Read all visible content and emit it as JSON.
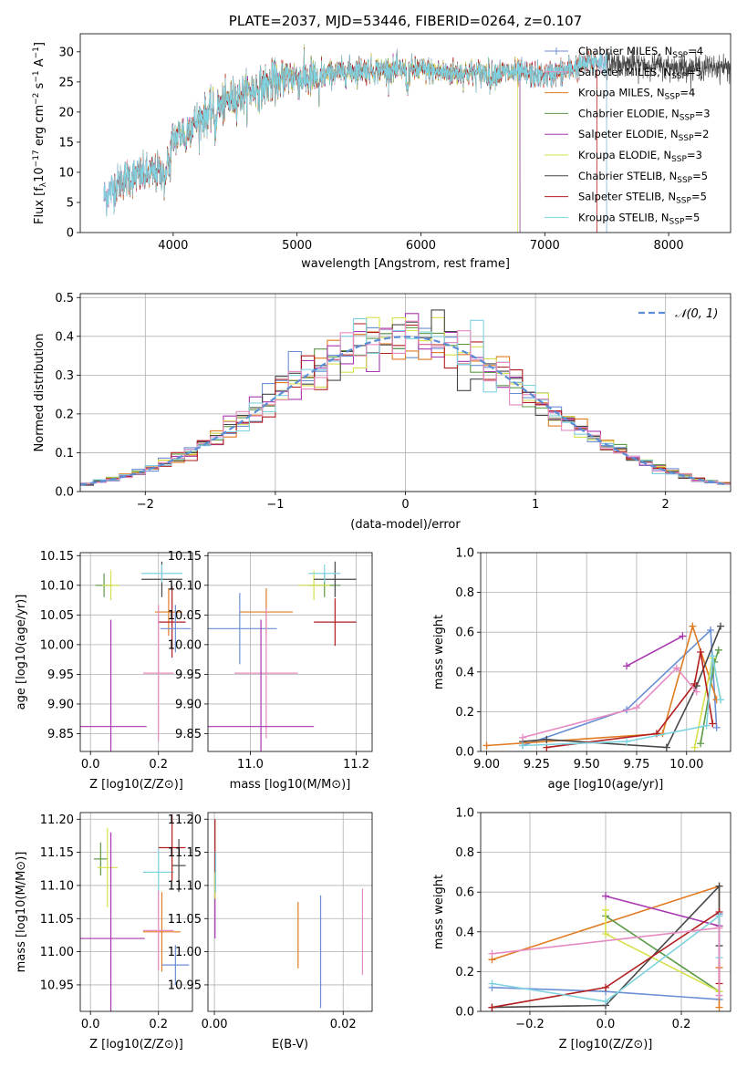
{
  "colors": {
    "c0": "#6a8fd4",
    "c1": "#e07b21",
    "c2": "#5d9a47",
    "c3": "#a838b0",
    "c4": "#d6e04a",
    "c5": "#474747",
    "c6": "#b21e1e",
    "c7": "#7fd3e0",
    "c8": "#e68bc1",
    "c9": "#c9a86a",
    "normal": "#5b8ed6"
  },
  "chart_data": [
    {
      "id": "spectrum",
      "type": "line",
      "title": "PLATE=2037, MJD=53446, FIBERID=0264, z=0.107",
      "xlabel": "wavelength [Angstrom, rest frame]",
      "ylabel": "Flux [f_λ 10^-17 erg cm^-2 s^-1 A^-1]",
      "xlim": [
        3250,
        8500
      ],
      "ylim": [
        0,
        33
      ],
      "xticks": [
        4000,
        5000,
        6000,
        7000,
        8000
      ],
      "yticks": [
        0,
        5,
        10,
        15,
        20,
        25,
        30
      ],
      "grid": false,
      "legend_position": "top-right",
      "legend": [
        {
          "label": "Chabrier MILES, N",
          "sub": "SSP",
          "tail": "=4",
          "color": "c0"
        },
        {
          "label": "Salpeter MILES, N",
          "sub": "SSP",
          "tail": "=5",
          "color": "c8"
        },
        {
          "label": "Kroupa MILES, N",
          "sub": "SSP",
          "tail": "=4",
          "color": "c1"
        },
        {
          "label": "Chabrier ELODIE, N",
          "sub": "SSP",
          "tail": "=3",
          "color": "c2"
        },
        {
          "label": "Salpeter ELODIE, N",
          "sub": "SSP",
          "tail": "=2",
          "color": "c3"
        },
        {
          "label": "Kroupa ELODIE, N",
          "sub": "SSP",
          "tail": "=3",
          "color": "c4"
        },
        {
          "label": "Chabrier STELIB, N",
          "sub": "SSP",
          "tail": "=5",
          "color": "c5"
        },
        {
          "label": "Salpeter STELIB, N",
          "sub": "SSP",
          "tail": "=5",
          "color": "c6"
        },
        {
          "label": "Kroupa STELIB, N",
          "sub": "SSP",
          "tail": "=5",
          "color": "c7"
        }
      ],
      "continuum_x": [
        3450,
        3600,
        3750,
        3900,
        4000,
        4150,
        4300,
        4500,
        4700,
        4900,
        5100,
        5300,
        5500,
        5800,
        6000,
        6200,
        6500,
        6800,
        7000,
        7200,
        7400,
        7600,
        7800,
        8000,
        8200,
        8500
      ],
      "continuum_y": [
        6,
        9,
        9.5,
        10,
        15.5,
        18,
        20,
        22.5,
        24,
        26,
        25.5,
        26.5,
        27,
        27,
        27,
        26.5,
        26.5,
        26.5,
        26,
        27,
        28.5,
        28,
        28,
        27.5,
        27.5,
        27.5
      ],
      "series_ranges": [
        {
          "color": "c5",
          "x": [
            3440,
            8500
          ]
        },
        {
          "color": "c0",
          "x": [
            3440,
            7500
          ]
        },
        {
          "color": "c8",
          "x": [
            3440,
            7500
          ]
        },
        {
          "color": "c1",
          "x": [
            3520,
            7420
          ]
        },
        {
          "color": "c2",
          "x": [
            3920,
            6800
          ]
        },
        {
          "color": "c3",
          "x": [
            3920,
            6800
          ]
        },
        {
          "color": "c4",
          "x": [
            3920,
            6780
          ]
        },
        {
          "color": "c6",
          "x": [
            3520,
            7420
          ]
        },
        {
          "color": "c7",
          "x": [
            3440,
            7500
          ]
        }
      ]
    },
    {
      "id": "residuals",
      "type": "area",
      "xlabel": "(data-model)/error",
      "ylabel": "Normed distribution",
      "xlim": [
        -2.5,
        2.5
      ],
      "ylim": [
        0,
        0.51
      ],
      "xticks": [
        -2,
        -1,
        0,
        1,
        2
      ],
      "yticks": [
        0.0,
        0.1,
        0.2,
        0.3,
        0.4,
        0.5
      ],
      "grid": true,
      "legend_position": "top-right",
      "legend": [
        {
          "label": "𝒩(0, 1)",
          "color": "normal",
          "style": "dashed"
        }
      ],
      "bin_width": 0.1,
      "histogram_colors": [
        "c0",
        "c1",
        "c2",
        "c3",
        "c4",
        "c5",
        "c6",
        "c7",
        "c8"
      ]
    },
    {
      "id": "age-vs-Z",
      "type": "scatter",
      "xlabel": "Z [log10(Z/Z⊙)]",
      "ylabel": "age  [log10(age/yr)]",
      "xlim": [
        -0.03,
        0.3
      ],
      "ylim": [
        9.82,
        10.155
      ],
      "xticks": [
        0.0,
        0.2
      ],
      "yticks": [
        9.85,
        9.9,
        9.95,
        10.0,
        10.05,
        10.1,
        10.15
      ],
      "grid": true,
      "points": [
        {
          "color": "c2",
          "x": 0.04,
          "y": 10.1,
          "xerr": 0.025,
          "yerr": 0.02
        },
        {
          "color": "c4",
          "x": 0.06,
          "y": 10.1,
          "xerr": 0.025,
          "yerr": 0.025
        },
        {
          "color": "c5",
          "x": 0.21,
          "y": 10.11,
          "xerr": 0.06,
          "yerr": 0.03
        },
        {
          "color": "c7",
          "x": 0.21,
          "y": 10.12,
          "xerr": 0.06,
          "yerr": 0.015
        },
        {
          "color": "c1",
          "x": 0.23,
          "y": 10.055,
          "xerr": 0.04,
          "yerr": 0.04
        },
        {
          "color": "c6",
          "x": 0.24,
          "y": 10.038,
          "xerr": 0.04,
          "yerr": 0.06
        },
        {
          "color": "c0",
          "x": 0.25,
          "y": 10.027,
          "xerr": 0.045,
          "yerr": 0.04
        },
        {
          "color": "c8",
          "x": 0.2,
          "y": 9.952,
          "xerr": 0.045,
          "yerr": 0.115
        },
        {
          "color": "c3",
          "x": 0.06,
          "y": 9.862,
          "xerr": 0.105,
          "yerr": 0.18
        }
      ]
    },
    {
      "id": "age-vs-mass",
      "type": "scatter",
      "xlabel": "mass [log10(M/M⊙)]",
      "ylabel": "",
      "xlim": [
        10.92,
        11.23
      ],
      "ylim": [
        9.82,
        10.155
      ],
      "xticks": [
        11.0,
        11.2
      ],
      "yticks": [
        9.85,
        9.9,
        9.95,
        10.0,
        10.05,
        10.1,
        10.15
      ],
      "grid": true,
      "points": [
        {
          "color": "c2",
          "x": 11.14,
          "y": 10.1,
          "xerr": 0.03,
          "yerr": 0.02
        },
        {
          "color": "c4",
          "x": 11.12,
          "y": 10.1,
          "xerr": 0.03,
          "yerr": 0.025
        },
        {
          "color": "c5",
          "x": 11.16,
          "y": 10.11,
          "xerr": 0.04,
          "yerr": 0.03
        },
        {
          "color": "c7",
          "x": 11.14,
          "y": 10.12,
          "xerr": 0.03,
          "yerr": 0.015
        },
        {
          "color": "c1",
          "x": 11.03,
          "y": 10.055,
          "xerr": 0.05,
          "yerr": 0.04
        },
        {
          "color": "c6",
          "x": 11.16,
          "y": 10.038,
          "xerr": 0.04,
          "yerr": 0.04
        },
        {
          "color": "c0",
          "x": 10.98,
          "y": 10.027,
          "xerr": 0.07,
          "yerr": 0.06
        },
        {
          "color": "c8",
          "x": 11.03,
          "y": 9.952,
          "xerr": 0.06,
          "yerr": 0.11
        },
        {
          "color": "c3",
          "x": 11.02,
          "y": 9.862,
          "xerr": 0.1,
          "yerr": 0.18
        }
      ]
    },
    {
      "id": "weight-vs-age",
      "type": "line",
      "xlabel": "age  [log10(age/yr)]",
      "ylabel": "mass weight",
      "xlim": [
        8.97,
        10.22
      ],
      "ylim": [
        0,
        1.0
      ],
      "xticks": [
        9.0,
        9.25,
        9.5,
        9.75,
        10.0
      ],
      "xticklabels": [
        "9.00",
        "9.25",
        "9.50",
        "9.75",
        "10.00"
      ],
      "yticks": [
        0.0,
        0.2,
        0.4,
        0.6,
        0.8,
        1.0
      ],
      "grid": true,
      "series": [
        {
          "color": "c0",
          "x": [
            9.18,
            9.7,
            10.12,
            10.15
          ],
          "y": [
            0.03,
            0.21,
            0.61,
            0.12
          ]
        },
        {
          "color": "c1",
          "x": [
            9.0,
            9.88,
            10.03,
            10.15
          ],
          "y": [
            0.03,
            0.09,
            0.63,
            0.26
          ]
        },
        {
          "color": "c2",
          "x": [
            10.07,
            10.14,
            10.16
          ],
          "y": [
            0.04,
            0.45,
            0.51
          ]
        },
        {
          "color": "c3",
          "x": [
            9.7,
            9.98
          ],
          "y": [
            0.43,
            0.58
          ]
        },
        {
          "color": "c4",
          "x": [
            10.04,
            10.13,
            10.17
          ],
          "y": [
            0.02,
            0.47,
            0.26
          ]
        },
        {
          "color": "c5",
          "x": [
            9.18,
            9.3,
            9.9,
            10.05,
            10.17
          ],
          "y": [
            0.05,
            0.06,
            0.02,
            0.33,
            0.63
          ]
        },
        {
          "color": "c6",
          "x": [
            9.3,
            9.85,
            10.04,
            10.07,
            10.13
          ],
          "y": [
            0.02,
            0.09,
            0.34,
            0.5,
            0.14
          ]
        },
        {
          "color": "c7",
          "x": [
            9.18,
            9.7,
            10.1,
            10.13,
            10.17
          ],
          "y": [
            0.03,
            0.05,
            0.13,
            0.48,
            0.26
          ]
        },
        {
          "color": "c8",
          "x": [
            9.18,
            9.75,
            9.95,
            10.05
          ],
          "y": [
            0.07,
            0.22,
            0.42,
            0.3
          ]
        }
      ]
    },
    {
      "id": "mass-vs-Z",
      "type": "scatter",
      "xlabel": "Z [log10(Z/Z⊙)]",
      "ylabel": "mass [log10(M/M⊙)]",
      "xlim": [
        -0.03,
        0.3
      ],
      "ylim": [
        10.91,
        11.21
      ],
      "xticks": [
        0.0,
        0.2
      ],
      "yticks": [
        10.95,
        11.0,
        11.05,
        11.1,
        11.15,
        11.2
      ],
      "grid": true,
      "points": [
        {
          "color": "c2",
          "x": 0.03,
          "y": 11.14,
          "xerr": 0.02,
          "yerr": 0.025
        },
        {
          "color": "c4",
          "x": 0.05,
          "y": 11.127,
          "xerr": 0.03,
          "yerr": 0.06
        },
        {
          "color": "c5",
          "x": 0.26,
          "y": 11.13,
          "xerr": 0.02,
          "yerr": 0.04
        },
        {
          "color": "c7",
          "x": 0.2,
          "y": 11.12,
          "xerr": 0.045,
          "yerr": 0.035
        },
        {
          "color": "c6",
          "x": 0.24,
          "y": 11.157,
          "xerr": 0.04,
          "yerr": 0.05
        },
        {
          "color": "c1",
          "x": 0.21,
          "y": 11.03,
          "xerr": 0.055,
          "yerr": 0.06
        },
        {
          "color": "c8",
          "x": 0.2,
          "y": 11.032,
          "xerr": 0.045,
          "yerr": 0.06
        },
        {
          "color": "c0",
          "x": 0.25,
          "y": 10.98,
          "xerr": 0.04,
          "yerr": 0.03
        },
        {
          "color": "c3",
          "x": 0.06,
          "y": 11.02,
          "xerr": 0.1,
          "yerr": 0.16
        }
      ]
    },
    {
      "id": "mass-vs-ebv",
      "type": "scatter",
      "xlabel": "E(B-V)",
      "ylabel": "",
      "xlim": [
        -0.001,
        0.0245
      ],
      "ylim": [
        10.91,
        11.21
      ],
      "xticks": [
        0.0,
        0.02
      ],
      "xticklabels": [
        "0.00",
        "0.02"
      ],
      "yticks": [
        10.95,
        11.0,
        11.05,
        11.1,
        11.15,
        11.2
      ],
      "grid": true,
      "points": [
        {
          "color": "c6",
          "x": 0.0001,
          "y": 11.15,
          "yerr": 0.05
        },
        {
          "color": "c3",
          "x": 0.0001,
          "y": 11.07,
          "yerr": 0.05
        },
        {
          "color": "c4",
          "x": 0.0001,
          "y": 11.1,
          "yerr": 0.02
        },
        {
          "color": "c7",
          "x": 0.0002,
          "y": 11.12,
          "yerr": 0.03
        },
        {
          "color": "c1",
          "x": 0.013,
          "y": 11.025,
          "yerr": 0.05
        },
        {
          "color": "c0",
          "x": 0.0165,
          "y": 11.0,
          "yerr": 0.085
        },
        {
          "color": "c8",
          "x": 0.023,
          "y": 11.03,
          "yerr": 0.065
        }
      ]
    },
    {
      "id": "weight-vs-Z",
      "type": "line",
      "xlabel": "Z [log10(Z/Z⊙)]",
      "ylabel": "mass weight",
      "xlim": [
        -0.33,
        0.33
      ],
      "ylim": [
        0,
        1.0
      ],
      "xticks": [
        -0.2,
        0.0,
        0.2
      ],
      "xticklabels": [
        "−0.2",
        "0.0",
        "0.2"
      ],
      "yticks": [
        0.0,
        0.2,
        0.4,
        0.6,
        0.8,
        1.0
      ],
      "grid": true,
      "series": [
        {
          "color": "c0",
          "x": [
            -0.3,
            0.0,
            0.3,
            0.3
          ],
          "y": [
            0.12,
            0.1,
            0.06,
            0.49
          ]
        },
        {
          "color": "c1",
          "x": [
            -0.3,
            0.3,
            0.3,
            0.3
          ],
          "y": [
            0.26,
            0.63,
            0.22,
            0.02
          ]
        },
        {
          "color": "c2",
          "x": [
            0.0,
            0.3
          ],
          "y": [
            0.48,
            0.1
          ]
        },
        {
          "color": "c3",
          "x": [
            0.0,
            0.3
          ],
          "y": [
            0.58,
            0.43
          ]
        },
        {
          "color": "c4",
          "x": [
            0.0,
            0.0,
            0.3
          ],
          "y": [
            0.51,
            0.39,
            0.1
          ]
        },
        {
          "color": "c5",
          "x": [
            -0.3,
            0.0,
            0.3,
            0.3
          ],
          "y": [
            0.02,
            0.03,
            0.63,
            0.33
          ]
        },
        {
          "color": "c6",
          "x": [
            -0.3,
            0.0,
            0.3,
            0.3
          ],
          "y": [
            0.02,
            0.12,
            0.5,
            0.14
          ]
        },
        {
          "color": "c7",
          "x": [
            -0.3,
            0.0,
            0.3,
            0.3
          ],
          "y": [
            0.14,
            0.05,
            0.48,
            0.27
          ]
        },
        {
          "color": "c8",
          "x": [
            -0.3,
            0.3,
            0.3
          ],
          "y": [
            0.29,
            0.42,
            0.08
          ]
        }
      ]
    }
  ]
}
